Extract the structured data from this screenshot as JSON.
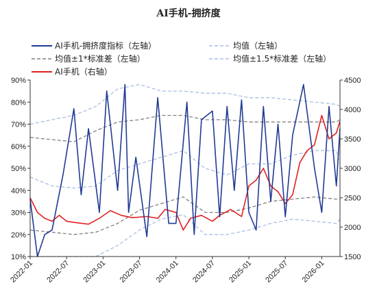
{
  "chart_data": {
    "type": "line",
    "title": "AI手机-拥挤度",
    "x_tick_labels": [
      "2022-01",
      "2022-07",
      "2023-01",
      "2023-07",
      "2024-01",
      "2024-07",
      "2025-01",
      "2025-07",
      "2026-01"
    ],
    "left_axis": {
      "ylim": [
        10,
        90
      ],
      "tick_labels": [
        "10%",
        "20%",
        "30%",
        "40%",
        "50%",
        "60%",
        "70%",
        "80%",
        "90%"
      ]
    },
    "right_axis": {
      "ylim": [
        1500,
        4500
      ],
      "tick_labels": [
        "1500",
        "2000",
        "2500",
        "3000",
        "3500",
        "4000",
        "4500"
      ]
    },
    "legend_position": "top",
    "series": [
      {
        "name": "AI手机-拥挤度指标（左轴）",
        "axis": "left",
        "color": "#1f3a93",
        "style": "solid",
        "x": [
          2022.0,
          2022.1,
          2022.2,
          2022.3,
          2022.45,
          2022.6,
          2022.7,
          2022.8,
          2022.95,
          2023.05,
          2023.2,
          2023.3,
          2023.35,
          2023.45,
          2023.6,
          2023.75,
          2023.9,
          2024.0,
          2024.15,
          2024.25,
          2024.35,
          2024.5,
          2024.6,
          2024.7,
          2024.8,
          2024.9,
          2025.0,
          2025.1,
          2025.2,
          2025.3,
          2025.4,
          2025.5,
          2025.6,
          2025.75,
          2025.9,
          2026.0,
          2026.1,
          2026.2,
          2026.25
        ],
        "y": [
          36,
          10,
          20,
          22,
          47,
          77,
          38,
          68,
          30,
          85,
          40,
          88,
          30,
          55,
          19,
          82,
          25,
          25,
          80,
          20,
          72,
          76,
          28,
          78,
          40,
          81,
          30,
          22,
          78,
          35,
          70,
          28,
          65,
          88,
          50,
          30,
          78,
          42,
          68
        ]
      },
      {
        "name": "均值（左轴）",
        "axis": "left",
        "color": "#a9bde3",
        "style": "dash",
        "x": [
          2022.0,
          2022.3,
          2022.6,
          2022.9,
          2023.2,
          2023.5,
          2023.8,
          2024.1,
          2024.4,
          2024.7,
          2025.0,
          2025.3,
          2025.6,
          2025.9,
          2026.2,
          2026.25
        ],
        "y": [
          46,
          42,
          41,
          42,
          49,
          52,
          55,
          58,
          50,
          47,
          52,
          52,
          56,
          58,
          58,
          52
        ]
      },
      {
        "name": "均值±1*标准差（左轴）",
        "axis": "left",
        "color": "#7f7f7f",
        "style": "dash",
        "x": [
          2022.0,
          2022.3,
          2022.6,
          2022.9,
          2023.2,
          2023.5,
          2023.8,
          2024.1,
          2024.4,
          2024.7,
          2025.0,
          2025.3,
          2025.6,
          2025.9,
          2026.2,
          2026.25
        ],
        "y": [
          64,
          63,
          62,
          67,
          71,
          72,
          74,
          74,
          72,
          72,
          71,
          71,
          71,
          71,
          71,
          72
        ]
      },
      {
        "name": "",
        "axis": "left",
        "color": "#7f7f7f",
        "style": "dash",
        "x": [
          2022.0,
          2022.3,
          2022.6,
          2022.9,
          2023.2,
          2023.5,
          2023.8,
          2024.1,
          2024.4,
          2024.7,
          2025.0,
          2025.3,
          2025.6,
          2025.9,
          2026.2,
          2026.25
        ],
        "y": [
          22,
          21,
          20,
          21,
          25,
          31,
          34,
          37,
          30,
          30,
          32,
          35,
          36,
          37,
          36,
          36
        ]
      },
      {
        "name": "均值±1.5*标准差（左轴）",
        "axis": "left",
        "color": "#a9bde3",
        "style": "dash",
        "x": [
          2022.0,
          2022.3,
          2022.6,
          2022.9,
          2023.2,
          2023.5,
          2023.8,
          2024.1,
          2024.4,
          2024.7,
          2025.0,
          2025.3,
          2025.6,
          2025.9,
          2026.2,
          2026.25
        ],
        "y": [
          70,
          72,
          74,
          78,
          86,
          88,
          85,
          85,
          84,
          84,
          82,
          82,
          81,
          80,
          79,
          78
        ]
      },
      {
        "name": "",
        "axis": "left",
        "color": "#a9bde3",
        "style": "dash",
        "x": [
          2022.0,
          2022.3,
          2022.6,
          2022.9,
          2023.2,
          2023.5,
          2023.8,
          2024.1,
          2024.4,
          2024.7,
          2025.0,
          2025.3,
          2025.6,
          2025.9,
          2026.2,
          2026.25
        ],
        "y": [
          10,
          10,
          10,
          10,
          15,
          22,
          27,
          29,
          20,
          20,
          22,
          25,
          27,
          26,
          25,
          27
        ]
      },
      {
        "name": "AI手机（右轴）",
        "axis": "right",
        "color": "#e02020",
        "style": "solid",
        "x": [
          2022.0,
          2022.1,
          2022.2,
          2022.3,
          2022.4,
          2022.5,
          2022.6,
          2022.8,
          2022.95,
          2023.1,
          2023.25,
          2023.4,
          2023.6,
          2023.75,
          2023.85,
          2024.0,
          2024.1,
          2024.2,
          2024.35,
          2024.5,
          2024.6,
          2024.75,
          2024.9,
          2025.0,
          2025.1,
          2025.2,
          2025.3,
          2025.4,
          2025.5,
          2025.6,
          2025.7,
          2025.8,
          2025.9,
          2026.0,
          2026.1,
          2026.2,
          2026.25
        ],
        "y": [
          2500,
          2250,
          2150,
          2100,
          2200,
          2100,
          2080,
          2050,
          2150,
          2280,
          2200,
          2160,
          2180,
          2150,
          2300,
          2250,
          1950,
          2150,
          2200,
          2100,
          2200,
          2300,
          2180,
          2700,
          2800,
          3000,
          2700,
          2600,
          2400,
          2550,
          3100,
          3300,
          3400,
          3900,
          3500,
          3600,
          3800
        ]
      }
    ]
  }
}
